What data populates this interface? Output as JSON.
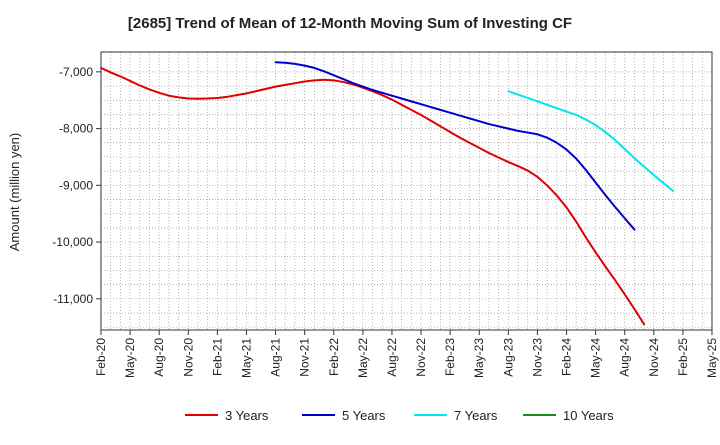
{
  "chart_data": {
    "type": "line",
    "title": "[2685]  Trend of Mean of 12-Month Moving Sum of Investing CF",
    "xlabel": "",
    "ylabel": "Amount (million yen)",
    "ylim": [
      -11550,
      -6650
    ],
    "yticks": [
      -7000,
      -8000,
      -9000,
      -10000,
      -11000
    ],
    "ytick_labels": [
      "-7,000",
      "-8,000",
      "-9,000",
      "-10,000",
      "-11,000"
    ],
    "xticks": [
      "Feb-20",
      "May-20",
      "Aug-20",
      "Nov-20",
      "Feb-21",
      "May-21",
      "Aug-21",
      "Nov-21",
      "Feb-22",
      "May-22",
      "Aug-22",
      "Nov-22",
      "Feb-23",
      "May-23",
      "Aug-23",
      "Nov-23",
      "Feb-24",
      "May-24",
      "Aug-24",
      "Nov-24",
      "Feb-25",
      "May-25"
    ],
    "grid": true,
    "legend_position": "bottom",
    "series": [
      {
        "name": "3 Years",
        "color": "#e00000",
        "start_month": 0,
        "values": [
          -6930,
          -7010,
          -7080,
          -7160,
          -7240,
          -7310,
          -7370,
          -7420,
          -7450,
          -7470,
          -7475,
          -7470,
          -7460,
          -7440,
          -7410,
          -7380,
          -7340,
          -7300,
          -7260,
          -7230,
          -7200,
          -7170,
          -7150,
          -7140,
          -7150,
          -7180,
          -7220,
          -7280,
          -7340,
          -7410,
          -7490,
          -7580,
          -7670,
          -7760,
          -7860,
          -7960,
          -8060,
          -8160,
          -8250,
          -8340,
          -8430,
          -8510,
          -8590,
          -8660,
          -8740,
          -8850,
          -9000,
          -9180,
          -9390,
          -9640,
          -9920,
          -10180,
          -10430,
          -10670,
          -10920,
          -11180,
          -11450
        ]
      },
      {
        "name": "5 Years",
        "color": "#0000cc",
        "start_month": 18,
        "values": [
          -6830,
          -6840,
          -6860,
          -6890,
          -6930,
          -6990,
          -7060,
          -7130,
          -7200,
          -7260,
          -7320,
          -7370,
          -7420,
          -7470,
          -7520,
          -7570,
          -7620,
          -7670,
          -7720,
          -7770,
          -7820,
          -7870,
          -7920,
          -7960,
          -8000,
          -8040,
          -8070,
          -8100,
          -8160,
          -8250,
          -8370,
          -8530,
          -8730,
          -8950,
          -9170,
          -9380,
          -9580,
          -9780
        ]
      },
      {
        "name": "7 Years",
        "color": "#00e5ee",
        "start_month": 42,
        "values": [
          -7340,
          -7400,
          -7460,
          -7520,
          -7580,
          -7640,
          -7700,
          -7760,
          -7840,
          -7940,
          -8060,
          -8200,
          -8360,
          -8520,
          -8670,
          -8820,
          -8960,
          -9100
        ]
      },
      {
        "name": "10 Years",
        "color": "#1a8a1a",
        "start_month": 0,
        "values": []
      }
    ]
  }
}
